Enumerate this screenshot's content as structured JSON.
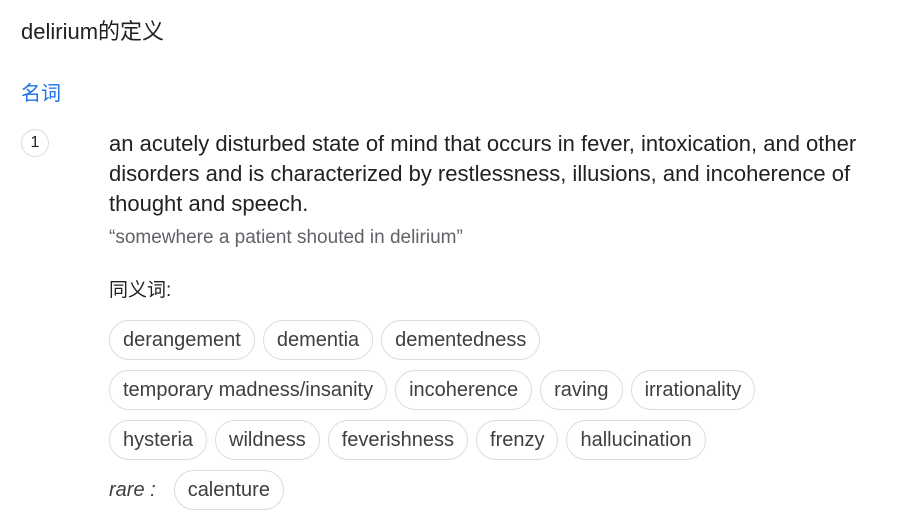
{
  "header": {
    "title": "delirium的定义"
  },
  "entry": {
    "part_of_speech": "名词",
    "senses": [
      {
        "number": "1",
        "definition": "an acutely disturbed state of mind that occurs in fever, intoxication, and other disorders and is characterized by restlessness, illusions, and incoherence of thought and speech.",
        "example": "“somewhere a patient shouted in delirium”",
        "synonyms_label": "同义词:",
        "synonym_rows": [
          [
            "derangement",
            "dementia",
            "dementedness"
          ],
          [
            "temporary madness/insanity",
            "incoherence",
            "raving",
            "irrationality"
          ],
          [
            "hysteria",
            "wildness",
            "feverishness",
            "frenzy",
            "hallucination"
          ]
        ],
        "rare_label": "rare :",
        "rare_synonyms": [
          "calenture"
        ]
      }
    ]
  },
  "colors": {
    "text": "#202124",
    "accent": "#1a73e8",
    "muted": "#5f6368",
    "chip_border": "#dadce0"
  }
}
